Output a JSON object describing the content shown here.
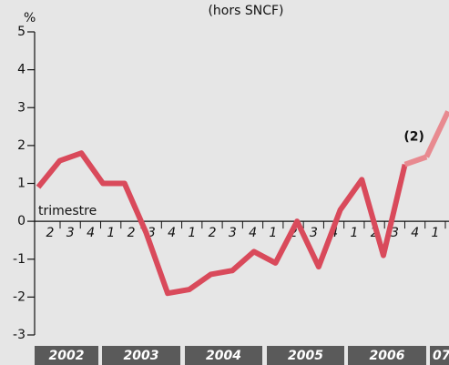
{
  "chart_data": {
    "type": "line",
    "title": "(hors SNCF)",
    "ylabel": "%",
    "xlabel": "trimestre",
    "categories": [
      "2",
      "3",
      "4",
      "1",
      "2",
      "3",
      "4",
      "1",
      "2",
      "3",
      "4",
      "1",
      "2",
      "3",
      "4",
      "1",
      "2",
      "3",
      "4",
      "1"
    ],
    "values": [
      0.9,
      1.6,
      1.8,
      1.0,
      1.0,
      -0.3,
      -1.9,
      -1.8,
      -1.4,
      -1.3,
      -0.8,
      -1.1,
      0.0,
      -1.2,
      0.3,
      1.1,
      -0.9,
      1.5,
      1.7,
      2.9
    ],
    "color": "#d94a5b",
    "projection_color": "#e88a90",
    "projection_from": 17,
    "annotation": "(2)",
    "years": [
      "2002",
      "2003",
      "2004",
      "2005",
      "2006",
      "07"
    ],
    "ylim": [
      -3,
      5
    ],
    "yticks": [
      -3,
      -2,
      -1,
      0,
      1,
      2,
      3,
      4,
      5
    ]
  }
}
